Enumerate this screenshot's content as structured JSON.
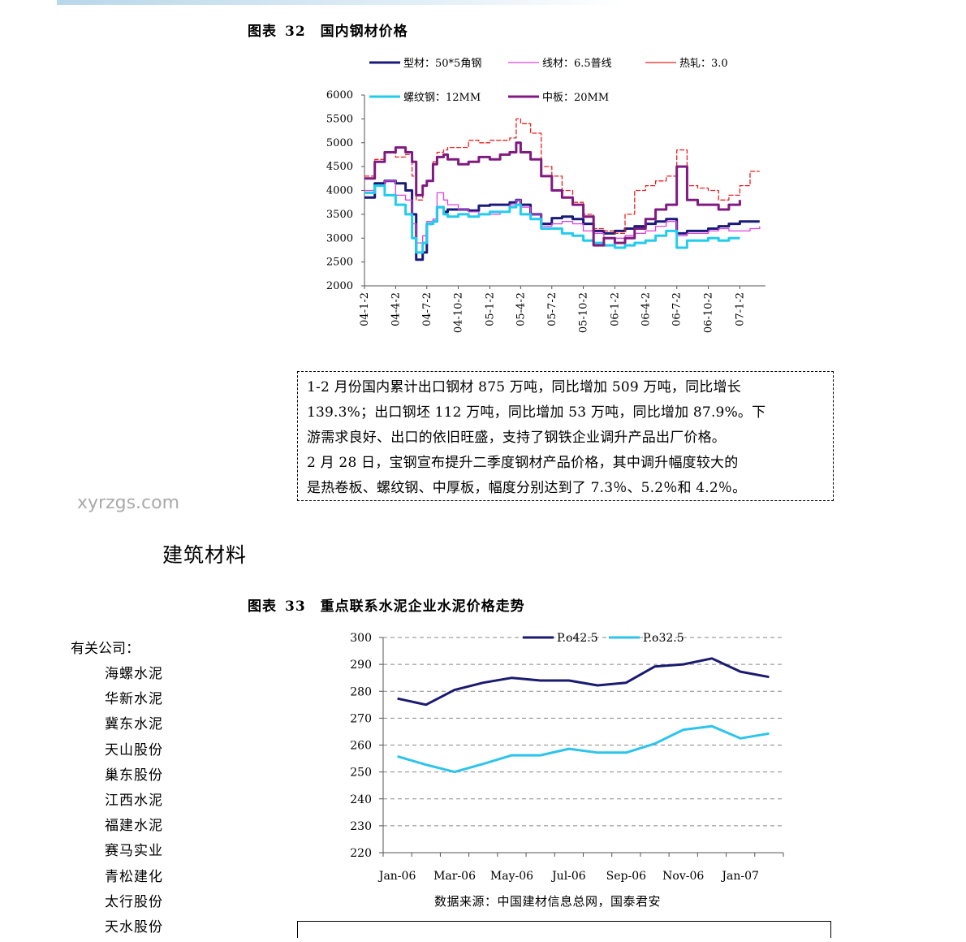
{
  "figure32": {
    "label": "图表",
    "number": "32",
    "title": "国内钢材价格"
  },
  "figure33": {
    "label": "图表",
    "number": "33",
    "title": "重点联系水泥企业水泥价格走势"
  },
  "commentary": [
    "1-2 月份国内累计出口钢材 875 万吨，同比增加 509 万吨，同比增长",
    "139.3%；出口钢坯 112 万吨，同比增加 53 万吨，同比增加 87.9%。下",
    "游需求良好、出口的依旧旺盛，支持了钢铁企业调升产品出厂价格。",
    "2 月 28 日，宝钢宣布提升二季度钢材产品价格，其中调升幅度较大的",
    "是热卷板、螺纹钢、中厚板，幅度分别达到了 7.3％、5.2％和 4.2％。"
  ],
  "watermark": "xyrzgs.com",
  "section_title": "建筑材料",
  "related_companies": {
    "header": "有关公司：",
    "items": [
      "海螺水泥",
      "华新水泥",
      "冀东水泥",
      "天山股份",
      "巢东股份",
      "江西水泥",
      "福建水泥",
      "赛马实业",
      "青松建化",
      "太行股份",
      "天水股份"
    ]
  },
  "source_note": "数据来源：中国建材信息总网，国泰君安",
  "chart_data": [
    {
      "type": "line",
      "ylim": [
        2000,
        6000
      ],
      "yticks": [
        2000,
        2500,
        3000,
        3500,
        4000,
        4500,
        5000,
        5500,
        6000
      ],
      "x_tick_labels": [
        "04-1-2",
        "04-4-2",
        "04-7-2",
        "04-10-2",
        "05-1-2",
        "05-4-2",
        "05-7-2",
        "05-10-2",
        "06-1-2",
        "06-4-2",
        "06-7-2",
        "06-10-2",
        "07-1-2"
      ],
      "legend_placement": "top",
      "series": [
        {
          "name": "型材：50*5角钢",
          "color": "#1a1a7a",
          "width": 3,
          "dash": "",
          "points": [
            [
              "04-1-2",
              3850
            ],
            [
              "04-2-1",
              4150
            ],
            [
              "04-3-1",
              4200
            ],
            [
              "04-4-2",
              4150
            ],
            [
              "04-5-1",
              4000
            ],
            [
              "04-5-20",
              3500
            ],
            [
              "04-6-1",
              2550
            ],
            [
              "04-6-20",
              2700
            ],
            [
              "04-7-2",
              3300
            ],
            [
              "04-7-20",
              3350
            ],
            [
              "04-8-1",
              3650
            ],
            [
              "04-8-20",
              3550
            ],
            [
              "04-9-1",
              3600
            ],
            [
              "04-10-2",
              3600
            ],
            [
              "04-11-1",
              3580
            ],
            [
              "04-12-1",
              3680
            ],
            [
              "05-1-2",
              3700
            ],
            [
              "05-2-1",
              3700
            ],
            [
              "05-3-1",
              3750
            ],
            [
              "05-3-20",
              3800
            ],
            [
              "05-4-2",
              3700
            ],
            [
              "05-5-1",
              3500
            ],
            [
              "05-6-1",
              3300
            ],
            [
              "05-7-2",
              3420
            ],
            [
              "05-8-1",
              3450
            ],
            [
              "05-9-1",
              3400
            ],
            [
              "05-10-2",
              3300
            ],
            [
              "05-11-1",
              3150
            ],
            [
              "05-12-1",
              3100
            ],
            [
              "06-1-2",
              3150
            ],
            [
              "06-2-1",
              3200
            ],
            [
              "06-3-1",
              3250
            ],
            [
              "06-4-2",
              3300
            ],
            [
              "06-5-1",
              3350
            ],
            [
              "06-6-1",
              3400
            ],
            [
              "06-7-2",
              3100
            ],
            [
              "06-8-1",
              3150
            ],
            [
              "06-9-1",
              3150
            ],
            [
              "06-10-2",
              3200
            ],
            [
              "06-11-1",
              3250
            ],
            [
              "06-12-1",
              3300
            ],
            [
              "07-1-2",
              3350
            ],
            [
              "07-2-1",
              3350
            ],
            [
              "07-3-1",
              3350
            ]
          ]
        },
        {
          "name": "线材：6.5普线",
          "color": "#e040e0",
          "width": 1.3,
          "dash": "",
          "points": [
            [
              "04-1-2",
              4000
            ],
            [
              "04-2-1",
              4100
            ],
            [
              "04-3-1",
              4200
            ],
            [
              "04-4-2",
              3900
            ],
            [
              "04-5-1",
              3800
            ],
            [
              "04-5-20",
              3300
            ],
            [
              "04-6-1",
              2900
            ],
            [
              "04-6-20",
              3050
            ],
            [
              "04-7-2",
              3350
            ],
            [
              "04-7-20",
              3400
            ],
            [
              "04-8-1",
              3950
            ],
            [
              "04-8-20",
              3800
            ],
            [
              "04-9-1",
              3700
            ],
            [
              "04-10-2",
              3600
            ],
            [
              "04-11-1",
              3550
            ],
            [
              "04-12-1",
              3500
            ],
            [
              "05-1-2",
              3500
            ],
            [
              "05-2-1",
              3550
            ],
            [
              "05-3-1",
              3700
            ],
            [
              "05-3-20",
              3800
            ],
            [
              "05-4-2",
              3650
            ],
            [
              "05-5-1",
              3500
            ],
            [
              "05-6-1",
              3250
            ],
            [
              "05-7-2",
              3300
            ],
            [
              "05-8-1",
              3350
            ],
            [
              "05-9-1",
              3300
            ],
            [
              "05-10-2",
              3150
            ],
            [
              "05-11-1",
              3100
            ],
            [
              "05-12-1",
              3000
            ],
            [
              "06-1-2",
              3000
            ],
            [
              "06-2-1",
              3050
            ],
            [
              "06-3-1",
              3100
            ],
            [
              "06-4-2",
              3150
            ],
            [
              "06-5-1",
              3250
            ],
            [
              "06-6-1",
              3350
            ],
            [
              "06-7-2",
              3050
            ],
            [
              "06-8-1",
              3100
            ],
            [
              "06-9-1",
              3100
            ],
            [
              "06-10-2",
              3150
            ],
            [
              "06-11-1",
              3200
            ],
            [
              "06-12-1",
              3150
            ],
            [
              "07-1-2",
              3150
            ],
            [
              "07-2-1",
              3200
            ],
            [
              "07-3-1",
              3250
            ]
          ]
        },
        {
          "name": "热轧：3.0",
          "color": "#ee2020",
          "width": 1.3,
          "dash": "6,2",
          "points": [
            [
              "04-1-2",
              4300
            ],
            [
              "04-2-1",
              4650
            ],
            [
              "04-3-1",
              4800
            ],
            [
              "04-4-2",
              4700
            ],
            [
              "04-5-1",
              4750
            ],
            [
              "04-5-20",
              4300
            ],
            [
              "04-6-1",
              3800
            ],
            [
              "04-6-20",
              4100
            ],
            [
              "04-7-2",
              4200
            ],
            [
              "04-7-20",
              4600
            ],
            [
              "04-8-1",
              4800
            ],
            [
              "04-8-20",
              4850
            ],
            [
              "04-9-1",
              4900
            ],
            [
              "04-10-2",
              4900
            ],
            [
              "04-11-1",
              5050
            ],
            [
              "04-12-1",
              5000
            ],
            [
              "05-1-2",
              5050
            ],
            [
              "05-2-1",
              5050
            ],
            [
              "05-3-1",
              5100
            ],
            [
              "05-3-20",
              5500
            ],
            [
              "05-4-2",
              5400
            ],
            [
              "05-5-1",
              5200
            ],
            [
              "05-6-1",
              4500
            ],
            [
              "05-7-2",
              4300
            ],
            [
              "05-8-1",
              4000
            ],
            [
              "05-9-1",
              3750
            ],
            [
              "05-10-2",
              3500
            ],
            [
              "05-11-1",
              3200
            ],
            [
              "05-12-1",
              3150
            ],
            [
              "06-1-2",
              3100
            ],
            [
              "06-2-1",
              3500
            ],
            [
              "06-3-1",
              4000
            ],
            [
              "06-4-2",
              4100
            ],
            [
              "06-5-1",
              4200
            ],
            [
              "06-6-1",
              4300
            ],
            [
              "06-7-2",
              4850
            ],
            [
              "06-8-1",
              4100
            ],
            [
              "06-9-1",
              4050
            ],
            [
              "06-10-2",
              4000
            ],
            [
              "06-11-1",
              3800
            ],
            [
              "06-12-1",
              3900
            ],
            [
              "07-1-2",
              4100
            ],
            [
              "07-2-1",
              4400
            ],
            [
              "07-3-1",
              4400
            ]
          ]
        },
        {
          "name": "螺纹钢：12MM",
          "color": "#22ccee",
          "width": 3,
          "dash": "",
          "points": [
            [
              "04-1-2",
              3950
            ],
            [
              "04-2-1",
              4100
            ],
            [
              "04-3-1",
              3900
            ],
            [
              "04-4-2",
              3700
            ],
            [
              "04-5-1",
              3500
            ],
            [
              "04-5-20",
              3000
            ],
            [
              "04-6-1",
              2700
            ],
            [
              "04-6-20",
              2900
            ],
            [
              "04-7-2",
              3300
            ],
            [
              "04-7-20",
              3350
            ],
            [
              "04-8-1",
              3650
            ],
            [
              "04-8-20",
              3500
            ],
            [
              "04-9-1",
              3450
            ],
            [
              "04-10-2",
              3500
            ],
            [
              "04-11-1",
              3450
            ],
            [
              "04-12-1",
              3500
            ],
            [
              "05-1-2",
              3550
            ],
            [
              "05-2-1",
              3550
            ],
            [
              "05-3-1",
              3650
            ],
            [
              "05-3-20",
              3700
            ],
            [
              "05-4-2",
              3500
            ],
            [
              "05-5-1",
              3400
            ],
            [
              "05-6-1",
              3200
            ],
            [
              "05-7-2",
              3200
            ],
            [
              "05-8-1",
              3100
            ],
            [
              "05-9-1",
              3050
            ],
            [
              "05-10-2",
              2950
            ],
            [
              "05-11-1",
              2900
            ],
            [
              "05-12-1",
              2850
            ],
            [
              "06-1-2",
              2800
            ],
            [
              "06-2-1",
              2850
            ],
            [
              "06-3-1",
              2900
            ],
            [
              "06-4-2",
              2950
            ],
            [
              "06-5-1",
              3050
            ],
            [
              "06-6-1",
              3150
            ],
            [
              "06-7-2",
              2800
            ],
            [
              "06-8-1",
              2950
            ],
            [
              "06-9-1",
              2950
            ],
            [
              "06-10-2",
              3000
            ],
            [
              "06-11-1",
              2950
            ],
            [
              "06-12-1",
              3000
            ],
            [
              "07-1-2",
              3000
            ]
          ]
        },
        {
          "name": "中板：20MM",
          "color": "#801a80",
          "width": 3,
          "dash": "",
          "points": [
            [
              "04-1-2",
              4250
            ],
            [
              "04-2-1",
              4600
            ],
            [
              "04-3-1",
              4800
            ],
            [
              "04-4-2",
              4900
            ],
            [
              "04-5-1",
              4800
            ],
            [
              "04-5-20",
              4600
            ],
            [
              "04-6-1",
              3900
            ],
            [
              "04-6-20",
              4100
            ],
            [
              "04-7-2",
              4200
            ],
            [
              "04-7-20",
              4550
            ],
            [
              "04-8-1",
              4700
            ],
            [
              "04-8-20",
              4750
            ],
            [
              "04-9-1",
              4650
            ],
            [
              "04-10-2",
              4550
            ],
            [
              "04-11-1",
              4600
            ],
            [
              "04-12-1",
              4700
            ],
            [
              "05-1-2",
              4650
            ],
            [
              "05-2-1",
              4750
            ],
            [
              "05-3-1",
              4800
            ],
            [
              "05-3-20",
              5000
            ],
            [
              "05-4-2",
              4800
            ],
            [
              "05-5-1",
              4650
            ],
            [
              "05-6-1",
              4300
            ],
            [
              "05-7-2",
              4000
            ],
            [
              "05-8-1",
              3850
            ],
            [
              "05-9-1",
              3700
            ],
            [
              "05-10-2",
              3450
            ],
            [
              "05-11-1",
              2850
            ],
            [
              "05-12-1",
              3000
            ],
            [
              "06-1-2",
              2900
            ],
            [
              "06-2-1",
              3000
            ],
            [
              "06-3-1",
              3200
            ],
            [
              "06-4-2",
              3400
            ],
            [
              "06-5-1",
              3600
            ],
            [
              "06-6-1",
              3700
            ],
            [
              "06-7-2",
              4500
            ],
            [
              "06-8-1",
              3800
            ],
            [
              "06-9-1",
              3700
            ],
            [
              "06-10-2",
              3700
            ],
            [
              "06-11-1",
              3600
            ],
            [
              "06-12-1",
              3700
            ],
            [
              "07-1-2",
              3800
            ]
          ]
        }
      ]
    },
    {
      "type": "line",
      "ylim": [
        220,
        300
      ],
      "yticks": [
        220,
        230,
        240,
        250,
        260,
        270,
        280,
        290,
        300
      ],
      "categories": [
        "Jan-06",
        "Feb-06",
        "Mar-06",
        "Apr-06",
        "May-06",
        "Jun-06",
        "Jul-06",
        "Aug-06",
        "Sep-06",
        "Oct-06",
        "Nov-06",
        "Dec-06",
        "Jan-07",
        "Feb-07"
      ],
      "x_tick_labels": [
        "Jan-06",
        "Mar-06",
        "May-06",
        "Jul-06",
        "Sep-06",
        "Nov-06",
        "Jan-07"
      ],
      "grid": "horizontal dashed",
      "legend_placement": "top",
      "series": [
        {
          "name": "P.o42.5",
          "color": "#1a1a70",
          "values": [
            277.3,
            275.0,
            280.5,
            283.2,
            285.0,
            284.0,
            284.0,
            282.2,
            283.2,
            289.2,
            290.0,
            292.2,
            287.3,
            285.3
          ]
        },
        {
          "name": "P.o32.5",
          "color": "#2cc4ec",
          "values": [
            255.8,
            252.7,
            250.0,
            253.0,
            256.2,
            256.2,
            258.6,
            257.2,
            257.2,
            260.5,
            265.7,
            267.0,
            262.5,
            264.3
          ]
        }
      ]
    }
  ]
}
